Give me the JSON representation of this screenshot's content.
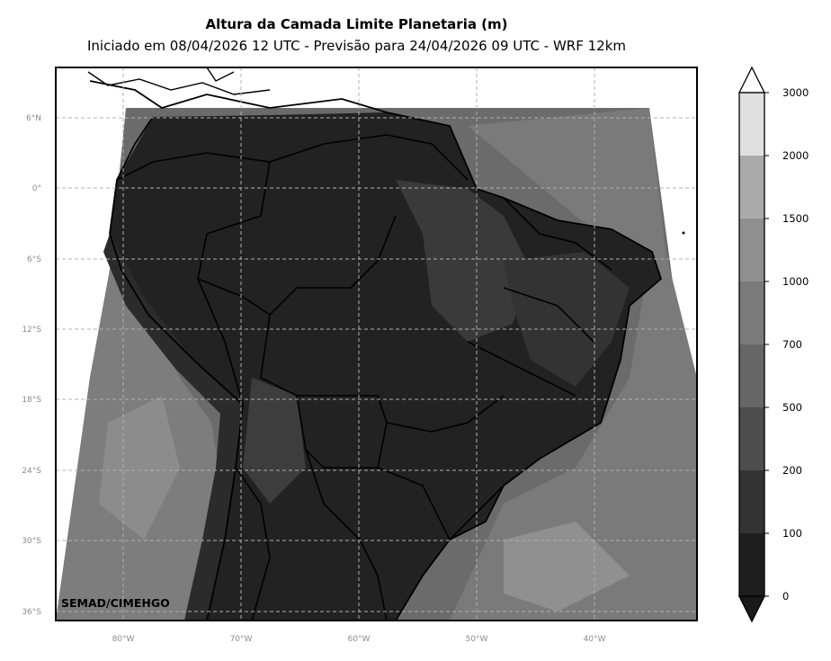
{
  "header": {
    "title": "Altura da Camada Limite Planetaria (m)",
    "subtitle": "Iniciado em 08/04/2026 12 UTC - Previsão para 24/04/2026 09 UTC - WRF 12km"
  },
  "map": {
    "lat_ticks": [
      "6°N",
      "0°",
      "6°S",
      "12°S",
      "18°S",
      "24°S",
      "30°S",
      "36°S"
    ],
    "lon_ticks": [
      "80°W",
      "70°W",
      "60°W",
      "50°W",
      "40°W"
    ],
    "credit": "SEMAD/CIMEHGO",
    "colormap": "grayscale",
    "gridlines": true
  },
  "colorbar": {
    "ticks": [
      "3000",
      "2000",
      "1500",
      "1000",
      "700",
      "500",
      "200",
      "100",
      "0"
    ],
    "levels": [
      0,
      100,
      200,
      500,
      700,
      1000,
      1500,
      2000,
      3000
    ],
    "colors": [
      "#1e1e1e",
      "#333333",
      "#4d4d4d",
      "#666666",
      "#7a7a7a",
      "#8f8f8f",
      "#aaaaaa",
      "#e0e0e0"
    ],
    "extend": "both"
  }
}
